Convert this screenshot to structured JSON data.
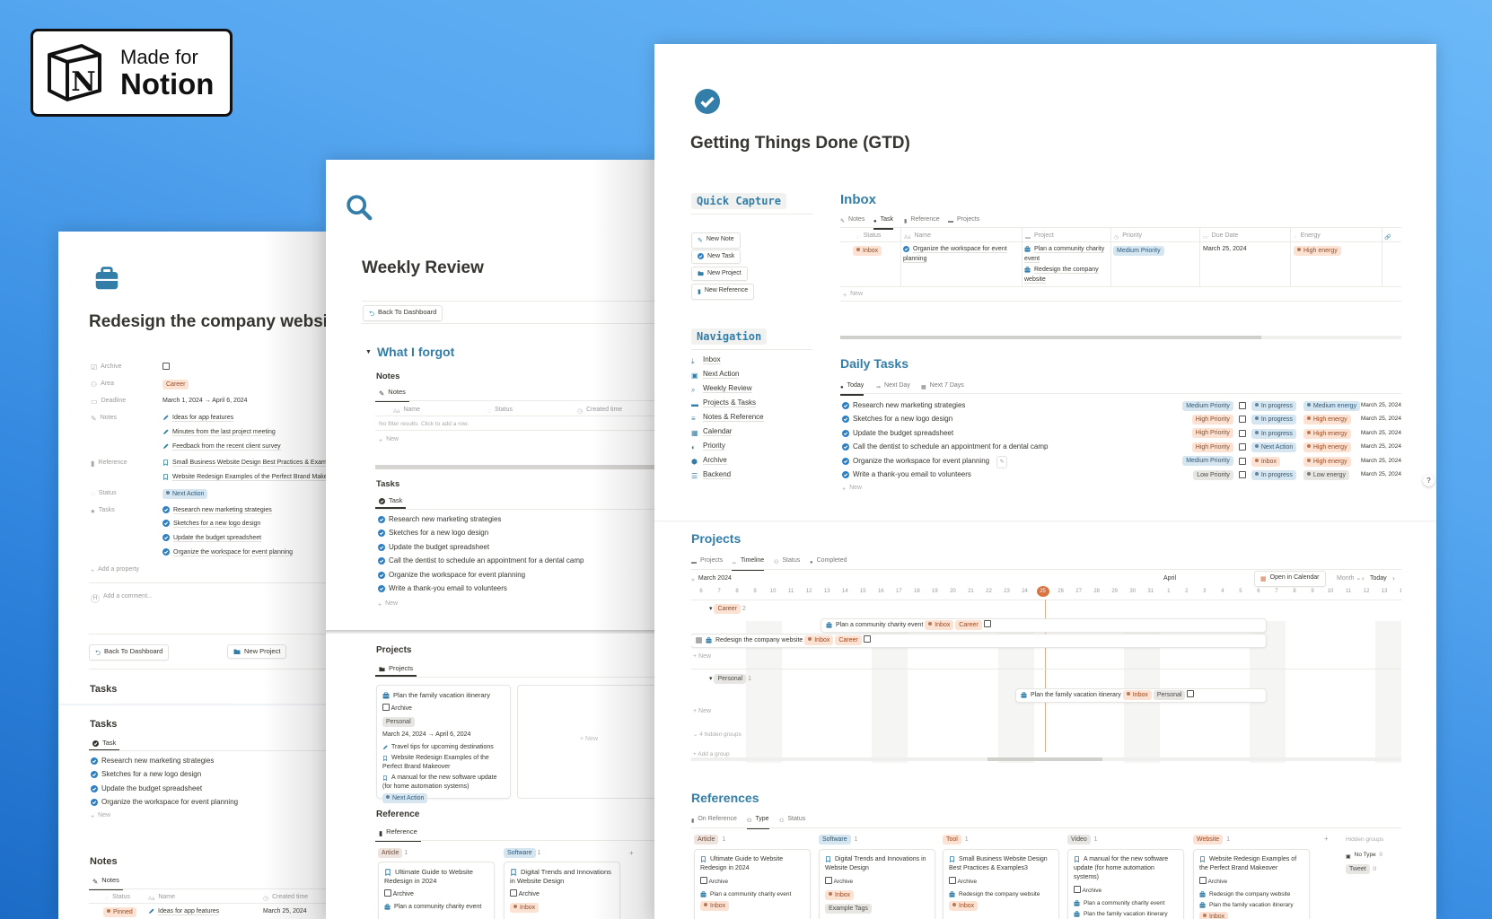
{
  "colors": {
    "accent": "#337ea9",
    "check": "#2f80c2",
    "today": "#d9733f"
  },
  "badge": {
    "line1": "Made for",
    "line2": "Notion",
    "logo_letter": "N"
  },
  "left": {
    "title": "Redesign the company website",
    "props": {
      "archive": {
        "label": "Archive"
      },
      "area": {
        "label": "Area",
        "value": "Career"
      },
      "deadline": {
        "label": "Deadline",
        "value": "March 1, 2024 → April 6, 2024"
      },
      "notes": {
        "label": "Notes",
        "items": [
          "Ideas for app features",
          "Minutes from the last project meeting",
          "Feedback from the recent client survey"
        ]
      },
      "reference": {
        "label": "Reference",
        "items": [
          "Small Business Website Design Best Practices & Examples3",
          "Website Redesign Examples of the Perfect Brand Makeover"
        ]
      },
      "status": {
        "label": "Status",
        "value": "Next Action"
      },
      "tasks": {
        "label": "Tasks",
        "items": [
          "Research new marketing strategies",
          "Sketches for a new logo design",
          "Update the budget spreadsheet",
          "Organize the workspace for event planning"
        ]
      }
    },
    "add_property": "Add a property",
    "comment_placeholder": "Add a comment...",
    "avatar": "H",
    "buttons": {
      "back": "Back To Dashboard",
      "new_project": "New Project"
    },
    "tasks_heading": "Tasks",
    "tasks_db": {
      "title": "Tasks",
      "tab": "Task",
      "rows": [
        "Research new marketing strategies",
        "Sketches for a new logo design",
        "Update the budget spreadsheet",
        "Organize the workspace for event planning"
      ],
      "new": "New"
    },
    "notes_db": {
      "title": "Notes",
      "tab": "Notes",
      "columns": [
        "Status",
        "Name",
        "Created time"
      ],
      "rows": [
        {
          "status": "Pinned",
          "name": "Ideas for app features",
          "created": "March 25, 2024"
        }
      ]
    }
  },
  "middle": {
    "title": "Weekly Review",
    "back": "Back To Dashboard",
    "toggle": "What I forgot",
    "notes_db": {
      "title": "Notes",
      "tab": "Notes",
      "columns": [
        "Name",
        "Status",
        "Created time"
      ],
      "empty": "No filter results. Click to add a row.",
      "new": "New"
    },
    "tasks_db": {
      "title": "Tasks",
      "tab": "Task",
      "rows": [
        "Research new marketing strategies",
        "Sketches for a new logo design",
        "Update the budget spreadsheet",
        "Call the dentist to schedule an appointment for a dental camp",
        "Organize the workspace for event planning",
        "Write a thank-you email to volunteers"
      ],
      "new": "New"
    },
    "projects_db": {
      "title": "Projects",
      "tab": "Projects",
      "new": "New",
      "card": {
        "title": "Plan the family vacation itinerary",
        "archive": "Archive",
        "area": "Personal",
        "dates": "March 24, 2024 → April 6, 2024",
        "note": "Travel tips for upcoming destinations",
        "refs": [
          "Website Redesign Examples of the Perfect Brand Makeover",
          "A manual for the new software update (for home automation systems)"
        ],
        "status": "Next Action"
      }
    },
    "reference_db": {
      "title": "Reference",
      "tab": "Reference",
      "groups": [
        {
          "name": "Article",
          "count": "1",
          "color": "brown",
          "card": {
            "title": "Ultimate Guide to Website Redesign in 2024",
            "archive": "Archive",
            "line": "Plan a community charity event"
          }
        },
        {
          "name": "Software",
          "count": "1",
          "color": "blue",
          "card": {
            "title": "Digital Trends and Innovations in Website Design",
            "archive": "Archive",
            "line": "Inbox"
          }
        }
      ]
    }
  },
  "right": {
    "title": "Getting Things Done (GTD)",
    "quick_capture": {
      "title": "Quick Capture",
      "buttons": [
        "New Note",
        "New Task",
        "New Project",
        "New Reference"
      ]
    },
    "navigation": {
      "title": "Navigation",
      "items": [
        "Inbox",
        "Next Action",
        "Weekly Review",
        "Projects & Tasks",
        "Notes & Reference",
        "Calendar",
        "Priority",
        "Archive",
        "Backend"
      ]
    },
    "inbox": {
      "title": "Inbox",
      "tabs": [
        "Notes",
        "Task",
        "Reference",
        "Projects"
      ],
      "active_tab": "Task",
      "columns": [
        "Status",
        "Name",
        "Project",
        "Priority",
        "Due Date",
        "Energy"
      ],
      "row": {
        "status": "Inbox",
        "name": "Organize the workspace for event planning",
        "projects": [
          "Plan a community charity event",
          "Redesign the company website"
        ],
        "priority": "Medium Priority",
        "due": "March 25, 2024",
        "energy": "High energy"
      },
      "new": "New"
    },
    "daily": {
      "title": "Daily Tasks",
      "tabs": [
        "Today",
        "Next Day",
        "Next 7 Days"
      ],
      "active_tab": "Today",
      "rows": [
        {
          "name": "Research new marketing strategies",
          "priority": "Medium Priority",
          "pcolor": "blue",
          "status": "In progress",
          "energy": "Medium energy",
          "ecolor": "blue",
          "date": "March 25, 2024"
        },
        {
          "name": "Sketches for a new logo design",
          "priority": "High Priority",
          "pcolor": "orange",
          "status": "In progress",
          "energy": "High energy",
          "ecolor": "orange",
          "date": "March 25, 2024"
        },
        {
          "name": "Update the budget spreadsheet",
          "priority": "High Priority",
          "pcolor": "orange",
          "status": "In progress",
          "energy": "High energy",
          "ecolor": "orange",
          "date": "March 25, 2024"
        },
        {
          "name": "Call the dentist to schedule an appointment for a dental camp",
          "priority": "High Priority",
          "pcolor": "orange",
          "status": "Next Action",
          "energy": "High energy",
          "ecolor": "orange",
          "date": "March 25, 2024"
        },
        {
          "name": "Organize the workspace for event planning",
          "priority": "Medium Priority",
          "pcolor": "blue",
          "status": "Inbox",
          "scolor": "orange",
          "energy": "High energy",
          "ecolor": "orange",
          "date": "March 25, 2024"
        },
        {
          "name": "Write a thank-you email to volunteers",
          "priority": "Low Priority",
          "pcolor": "gray",
          "status": "In progress",
          "energy": "Low energy",
          "ecolor": "gray",
          "date": "March 25, 2024"
        }
      ],
      "new": "New"
    },
    "help": "?",
    "projects": {
      "title": "Projects",
      "tabs": [
        "Projects",
        "Timeline",
        "Status",
        "Completed"
      ],
      "active_tab": "Timeline",
      "month": "March 2024",
      "next_month": "April",
      "open_calendar": "Open in Calendar",
      "scale": "Month",
      "today": "Today",
      "days": [
        "6",
        "7",
        "8",
        "9",
        "10",
        "11",
        "12",
        "13",
        "14",
        "15",
        "16",
        "17",
        "18",
        "19",
        "20",
        "21",
        "22",
        "23",
        "24",
        "25",
        "26",
        "27",
        "28",
        "29",
        "30",
        "31",
        "1",
        "2",
        "3",
        "4",
        "5",
        "6",
        "7",
        "8",
        "9",
        "10",
        "11",
        "12",
        "13",
        "14"
      ],
      "today_day": "25",
      "groups": [
        {
          "name": "Career",
          "count": "2",
          "color": "orange",
          "items": [
            {
              "title": "Plan a community charity event",
              "status": "Inbox",
              "area": "Career"
            },
            {
              "title": "Redesign the company website",
              "status": "Inbox",
              "area": "Career"
            }
          ]
        },
        {
          "name": "Personal",
          "count": "1",
          "color": "gray",
          "items": [
            {
              "title": "Plan the family vacation itinerary",
              "status": "Inbox",
              "area": "Personal"
            }
          ]
        }
      ],
      "new": "New",
      "hidden_groups": "4 hidden groups",
      "add_group": "Add a group"
    },
    "references": {
      "title": "References",
      "tabs": [
        "On Reference",
        "Type",
        "Status"
      ],
      "active_tab": "Type",
      "groups": [
        {
          "name": "Article",
          "count": "1",
          "color": "brown",
          "card": {
            "title": "Ultimate Guide to Website Redesign in 2024",
            "archive": "Archive",
            "lines": [
              "Plan a community charity event"
            ],
            "tags": [
              "Inbox"
            ]
          }
        },
        {
          "name": "Software",
          "count": "1",
          "color": "blue",
          "card": {
            "title": "Digital Trends and Innovations in Website Design",
            "archive": "Archive",
            "lines": [],
            "tags": [
              "Inbox",
              "Example Tags"
            ]
          }
        },
        {
          "name": "Tool",
          "count": "1",
          "color": "orange",
          "card": {
            "title": "Small Business Website Design Best Practices & Examples3",
            "archive": "Archive",
            "lines": [
              "Redesign the company website"
            ],
            "tags": [
              "Inbox"
            ]
          }
        },
        {
          "name": "Video",
          "count": "1",
          "color": "gray",
          "card": {
            "title": "A manual for the new software update (for home automation systems)",
            "archive": "Archive",
            "lines": [
              "Plan a community charity event",
              "Plan the family vacation itinerary"
            ],
            "tags": []
          }
        },
        {
          "name": "Website",
          "count": "1",
          "color": "orange",
          "card": {
            "title": "Website Redesign Examples of the Perfect Brand Makeover",
            "archive": "Archive",
            "lines": [
              "Redesign the company website",
              "Plan the family vacation itinerary"
            ],
            "tags": [
              "Inbox"
            ]
          }
        }
      ],
      "hidden_groups": "Hidden groups",
      "hidden": [
        {
          "name": "No Type",
          "count": "0"
        },
        {
          "name": "Tweet",
          "count": "0"
        }
      ]
    }
  }
}
